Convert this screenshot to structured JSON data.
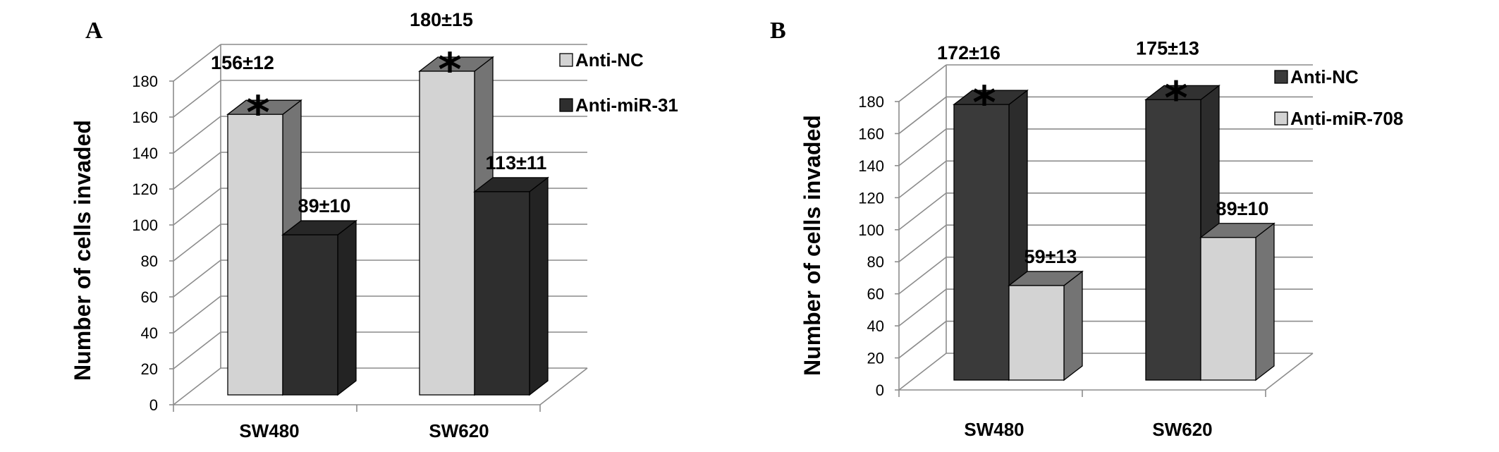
{
  "chart_data": [
    {
      "panel": "A",
      "type": "bar",
      "style": "3d-clustered",
      "ylabel": "Number of cells invaded",
      "ylim": [
        0,
        180
      ],
      "yticks": [
        "0",
        "20",
        "40",
        "60",
        "80",
        "100",
        "120",
        "140",
        "160",
        "180"
      ],
      "categories": [
        "SW480",
        "SW620"
      ],
      "grid": true,
      "legend_position": "right",
      "series": [
        {
          "name": "Anti-NC",
          "color": "#d3d3d3",
          "values": [
            156,
            180
          ],
          "labels": [
            "156±12",
            "180±15"
          ],
          "significant": [
            "*",
            "*"
          ]
        },
        {
          "name": "Anti-miR-31",
          "color": "#2e2e2e",
          "values": [
            89,
            113
          ],
          "labels": [
            "89±10",
            "113±11"
          ],
          "significant": [
            "",
            ""
          ]
        }
      ]
    },
    {
      "panel": "B",
      "type": "bar",
      "style": "3d-clustered",
      "ylabel": "Number of cells invaded",
      "ylim": [
        0,
        180
      ],
      "yticks": [
        "0",
        "20",
        "40",
        "60",
        "80",
        "100",
        "120",
        "140",
        "160",
        "180"
      ],
      "categories": [
        "SW480",
        "SW620"
      ],
      "grid": true,
      "legend_position": "right",
      "series": [
        {
          "name": "Anti-NC",
          "color": "#3a3a3a",
          "values": [
            172,
            175
          ],
          "labels": [
            "172±16",
            "175±13"
          ],
          "significant": [
            "*",
            "*"
          ]
        },
        {
          "name": "Anti-miR-708",
          "color": "#d3d3d3",
          "values": [
            59,
            89
          ],
          "labels": [
            "59±13",
            "89±10"
          ],
          "significant": [
            "",
            ""
          ]
        }
      ]
    }
  ]
}
